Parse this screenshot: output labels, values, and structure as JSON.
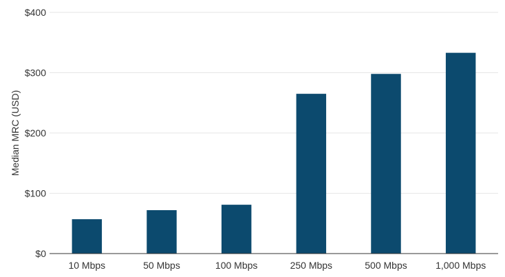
{
  "chart_data": {
    "type": "bar",
    "title": "",
    "xlabel": "",
    "ylabel": "Median MRC (USD)",
    "categories": [
      "10 Mbps",
      "50 Mbps",
      "100 Mbps",
      "250 Mbps",
      "500 Mbps",
      "1,000 Mbps"
    ],
    "values": [
      57,
      72,
      81,
      265,
      298,
      333
    ],
    "ylim": [
      0,
      400
    ],
    "yticks": [
      0,
      100,
      200,
      300,
      400
    ],
    "ytick_labels": [
      "$0",
      "$100",
      "$200",
      "$300",
      "$400"
    ],
    "grid": true,
    "legend": "none",
    "bar_color": "#0c4a6e"
  }
}
